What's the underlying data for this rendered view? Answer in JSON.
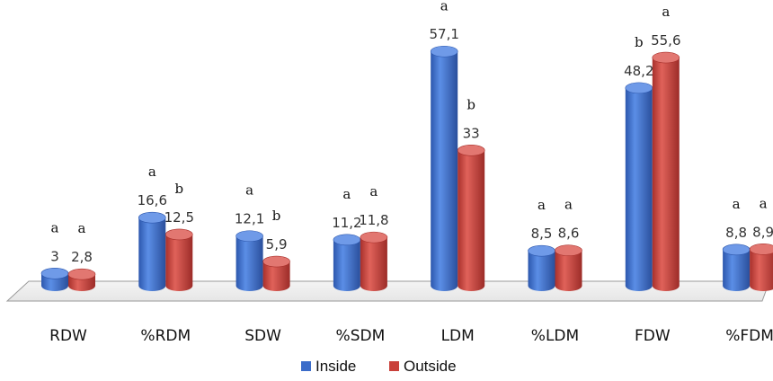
{
  "chart_data": {
    "type": "bar",
    "categories": [
      "RDW",
      "%RDM",
      "SDW",
      "%SDM",
      "LDM",
      "%LDM",
      "FDW",
      "%FDM"
    ],
    "series": [
      {
        "name": "Inside",
        "values": [
          3,
          16.6,
          12.1,
          11.2,
          57.1,
          8.5,
          48.2,
          8.8
        ],
        "value_labels": [
          "3",
          "16,6",
          "12,1",
          "11,2",
          "57,1",
          "8,5",
          "48,2",
          "8,8"
        ],
        "significance": [
          "a",
          "a",
          "a",
          "a",
          "a",
          "a",
          "b",
          "a"
        ],
        "color": "#3b6cc9"
      },
      {
        "name": "Outside",
        "values": [
          2.8,
          12.5,
          5.9,
          11.8,
          33,
          8.6,
          55.6,
          8.9
        ],
        "value_labels": [
          "2,8",
          "12,5",
          "5,9",
          "11,8",
          "33",
          "8,6",
          "55,6",
          "8,9"
        ],
        "significance": [
          "a",
          "b",
          "b",
          "a",
          "b",
          "a",
          "a",
          "a"
        ],
        "color": "#c9403a"
      }
    ],
    "ylim": [
      0,
      60
    ],
    "grid": false,
    "legend_position": "bottom",
    "style": "3d-cylinder"
  }
}
